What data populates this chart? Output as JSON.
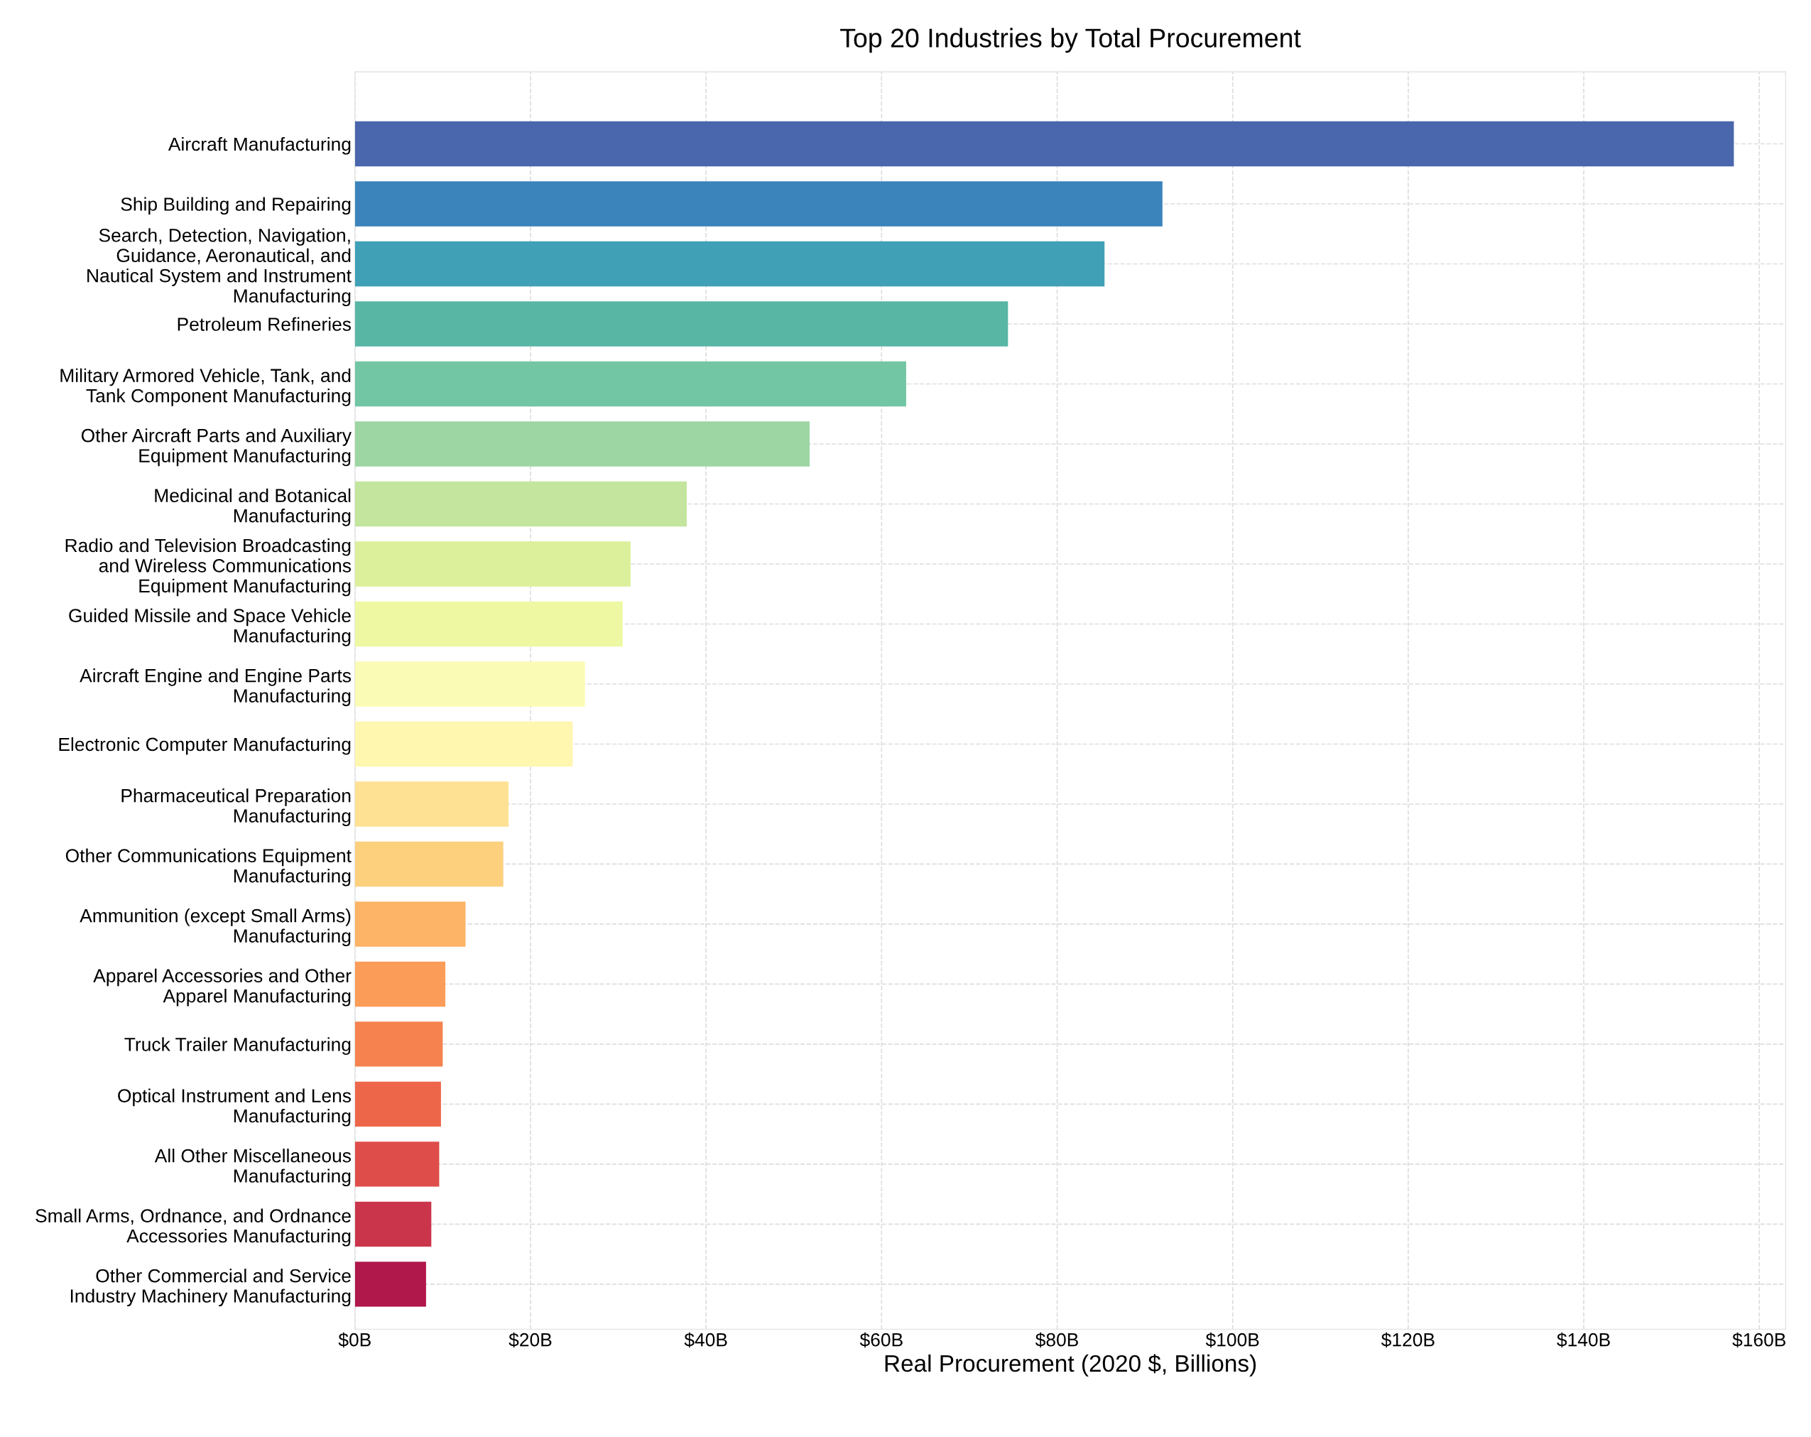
{
  "chart_data": {
    "type": "bar",
    "orientation": "horizontal",
    "title": "Top 20 Industries by Total Procurement",
    "xlabel": "Real Procurement (2020 $, Billions)",
    "categories": [
      "Aircraft Manufacturing",
      "Ship Building and Repairing",
      "Search, Detection, Navigation,\nGuidance, Aeronautical, and\nNautical System and Instrument\nManufacturing",
      "Petroleum Refineries",
      "Military Armored Vehicle, Tank, and\nTank Component Manufacturing",
      "Other Aircraft Parts and Auxiliary\nEquipment Manufacturing",
      "Medicinal and Botanical\nManufacturing",
      "Radio and Television Broadcasting\nand Wireless Communications\nEquipment Manufacturing",
      "Guided Missile and Space Vehicle\nManufacturing",
      "Aircraft Engine and Engine Parts\nManufacturing",
      "Electronic Computer Manufacturing",
      "Pharmaceutical Preparation\nManufacturing",
      "Other Communications Equipment\nManufacturing",
      "Ammunition (except Small Arms)\nManufacturing",
      "Apparel Accessories and Other\nApparel Manufacturing",
      "Truck Trailer Manufacturing",
      "Optical Instrument and Lens\nManufacturing",
      "All Other Miscellaneous\nManufacturing",
      "Small Arms, Ordnance, and Ordnance\nAccessories Manufacturing",
      "Other Commercial and Service\nIndustry Machinery Manufacturing"
    ],
    "values": [
      157.1,
      92.0,
      85.4,
      74.4,
      62.8,
      51.8,
      37.8,
      31.4,
      30.5,
      26.2,
      24.8,
      17.5,
      16.9,
      12.6,
      10.3,
      10.0,
      9.8,
      9.6,
      8.7,
      8.1
    ],
    "colors": [
      "#4a66ac",
      "#3a84bb",
      "#3fa0b6",
      "#58b6a5",
      "#73c6a4",
      "#9dd6a3",
      "#c3e59e",
      "#dcef9b",
      "#eef8a3",
      "#fafcb5",
      "#fff6b0",
      "#fee193",
      "#fdd07e",
      "#fdb466",
      "#fb9c58",
      "#f5824f",
      "#ed6649",
      "#de4d4a",
      "#cb354b",
      "#b0174a"
    ],
    "xlim": [
      0,
      163
    ],
    "xticks": [
      {
        "value": 0,
        "label": "$0B"
      },
      {
        "value": 20,
        "label": "$20B"
      },
      {
        "value": 40,
        "label": "$40B"
      },
      {
        "value": 60,
        "label": "$60B"
      },
      {
        "value": 80,
        "label": "$80B"
      },
      {
        "value": 100,
        "label": "$100B"
      },
      {
        "value": 120,
        "label": "$120B"
      },
      {
        "value": 140,
        "label": "$140B"
      },
      {
        "value": 160,
        "label": "$160B"
      }
    ],
    "grid": true,
    "line_style": "dashed"
  }
}
